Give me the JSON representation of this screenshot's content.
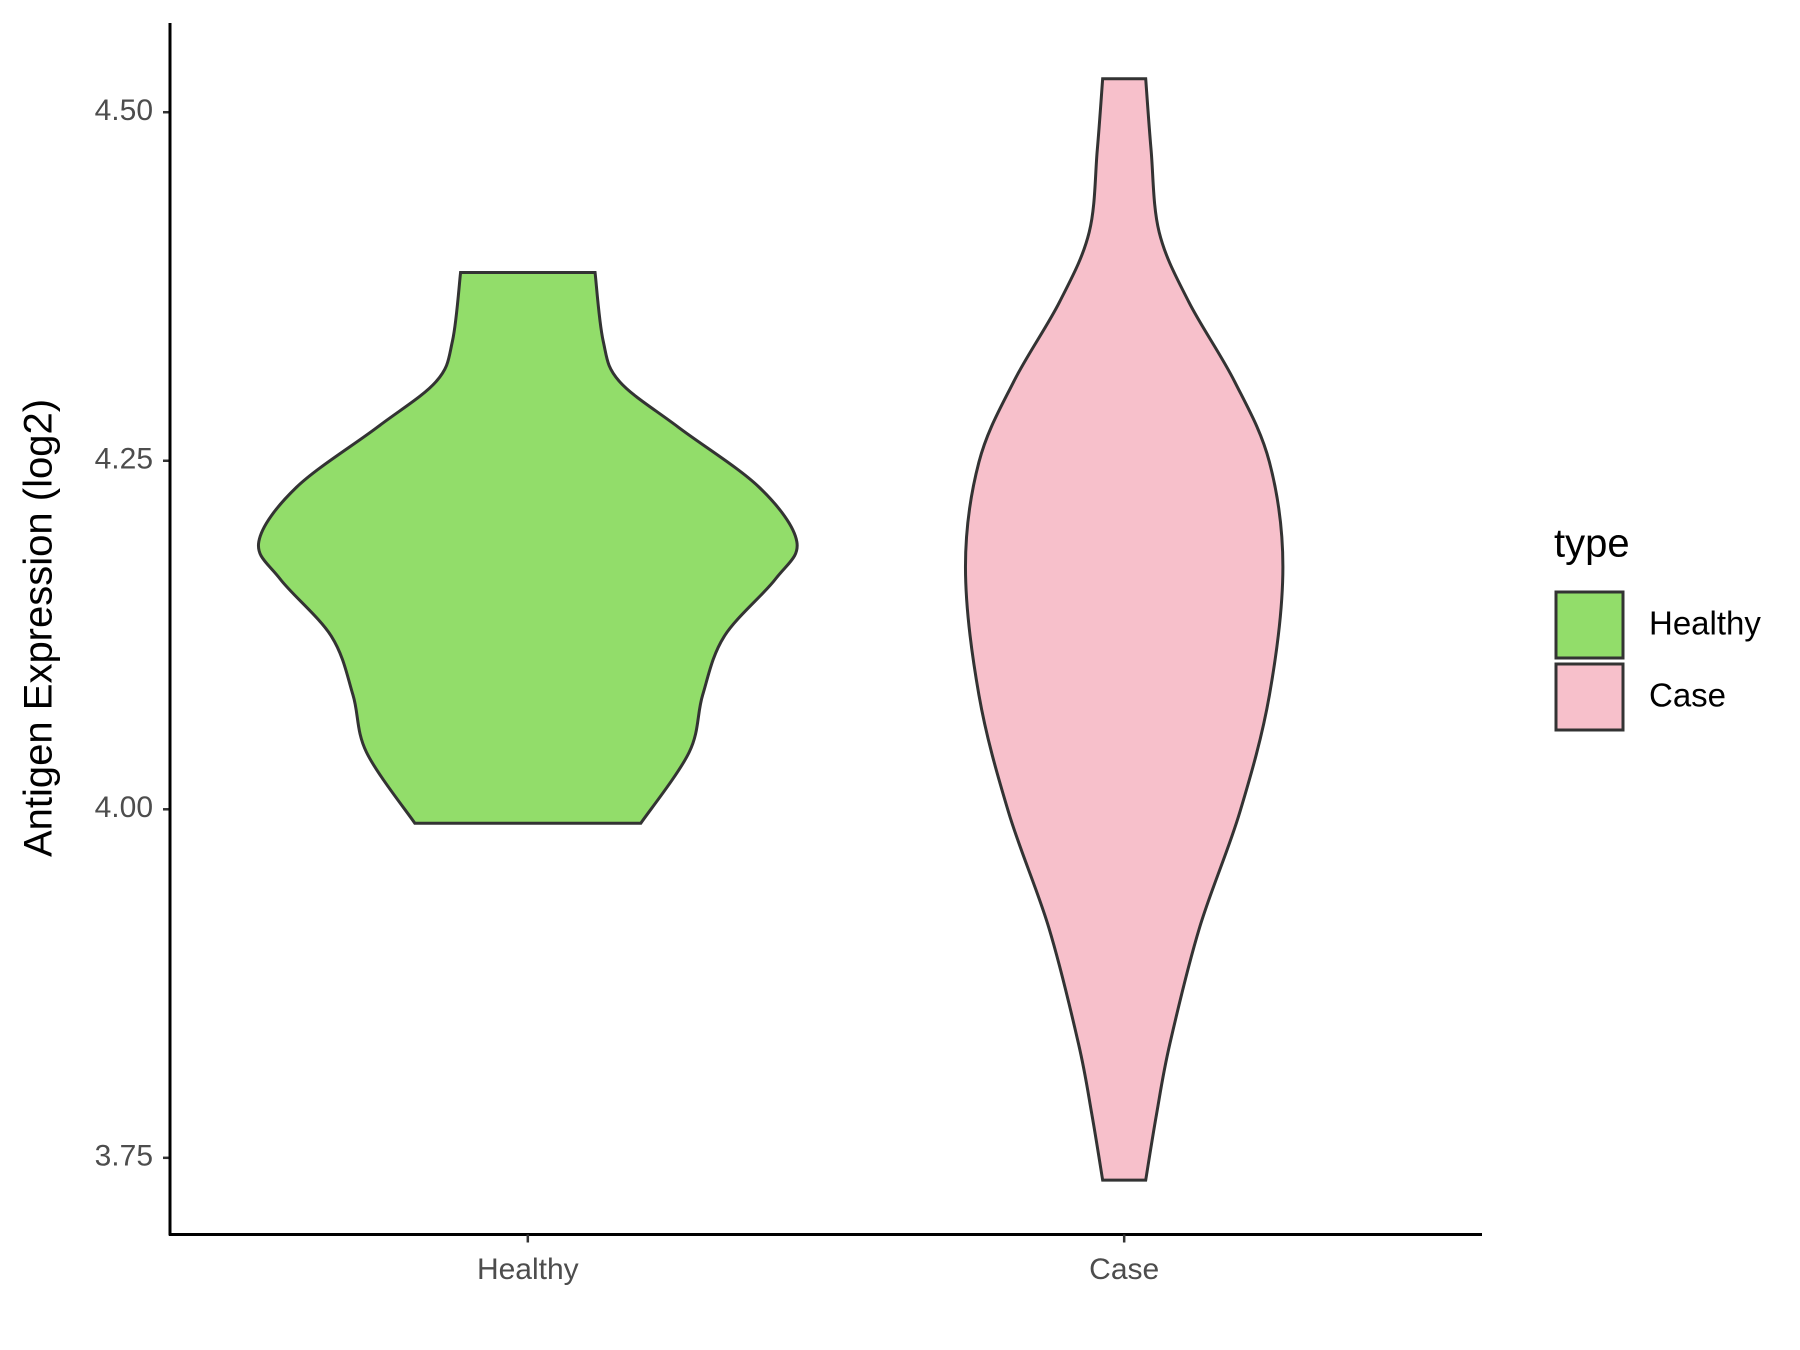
{
  "chart_data": {
    "type": "violin",
    "y_label": "Antigen Expression (log2)",
    "categories": [
      "Healthy",
      "Case"
    ],
    "legend_title": "type",
    "legend_position": "right",
    "series": [
      {
        "name": "Healthy",
        "color": "#92dd6a",
        "y": [
          4.385,
          4.336,
          4.307,
          4.274,
          4.231,
          4.192,
          4.165,
          4.124,
          4.082,
          4.041,
          3.99
        ],
        "width": [
          0.25,
          0.28,
          0.34,
          0.56,
          0.86,
          1.0,
          0.92,
          0.73,
          0.65,
          0.6,
          0.42
        ]
      },
      {
        "name": "Case",
        "color": "#f7c0cb",
        "y": [
          4.524,
          4.473,
          4.414,
          4.364,
          4.307,
          4.249,
          4.174,
          4.082,
          3.998,
          3.915,
          3.832,
          3.781,
          3.734
        ],
        "width": [
          0.08,
          0.1,
          0.13,
          0.24,
          0.41,
          0.54,
          0.59,
          0.54,
          0.43,
          0.28,
          0.17,
          0.12,
          0.08
        ]
      }
    ],
    "ylim": [
      3.695,
      4.564
    ],
    "yticks": [
      {
        "value": 3.75,
        "label": "3.75"
      },
      {
        "value": 4.0,
        "label": "4.00"
      },
      {
        "value": 4.25,
        "label": "4.25"
      },
      {
        "value": 4.5,
        "label": "4.50"
      }
    ]
  }
}
